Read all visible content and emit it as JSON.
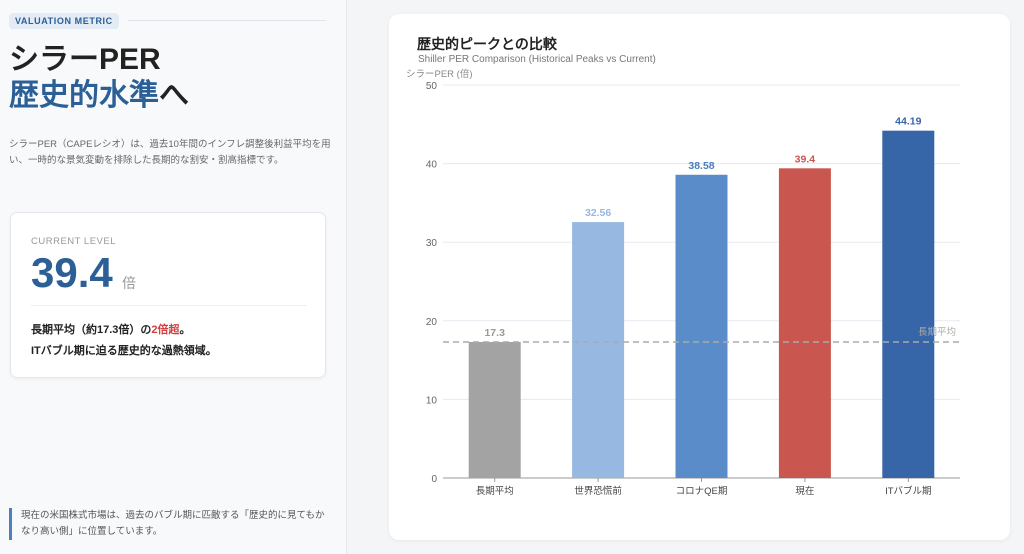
{
  "left": {
    "badge": "VALUATION METRIC",
    "title_line1": "シラーPER",
    "title_line2_accent": "歴史的水準",
    "title_line2_rest": "へ",
    "description": "シラーPER（CAPEレシオ）は、過去10年間のインフレ調整後利益平均を用い、一時的な景気変動を排除した長期的な割安・割高指標です。",
    "card": {
      "label": "CURRENT LEVEL",
      "value": "39.4",
      "unit": "倍",
      "note_a": "長期平均（約17.3倍）の",
      "note_highlight": "2倍超",
      "note_b": "。",
      "note_line2": "ITバブル期に迫る歴史的な過熱領域。"
    },
    "quote": "現在の米国株式市場は、過去のバブル期に匹敵する「歴史的に見てもかなり高い側」に位置しています。"
  },
  "colors": {
    "accent": "#2b5f96",
    "highlight": "#d04040"
  },
  "chart_data": {
    "type": "bar",
    "title": "歴史的ピークとの比較",
    "subtitle": "Shiller PER Comparison (Historical Peaks vs Current)",
    "ylabel": "シラーPER (倍)",
    "categories": [
      "長期平均",
      "世界恐慌前",
      "コロナQE期",
      "現在",
      "ITバブル期"
    ],
    "values": [
      17.3,
      32.56,
      38.58,
      39.4,
      44.19
    ],
    "data_labels": [
      "17.3",
      "32.56",
      "38.58",
      "39.4",
      "44.19"
    ],
    "bar_colors": [
      "#a3a3a3",
      "#97b8e0",
      "#5a8cc9",
      "#c9574f",
      "#3766a8"
    ],
    "label_colors": [
      "#999999",
      "#97b8e0",
      "#4a7cc0",
      "#c9574f",
      "#3766a8"
    ],
    "ylim": [
      0,
      50
    ],
    "yticks": [
      0,
      10,
      20,
      30,
      40,
      50
    ],
    "grid": true,
    "reference_line": {
      "value": 17.3,
      "label": "長期平均"
    }
  }
}
